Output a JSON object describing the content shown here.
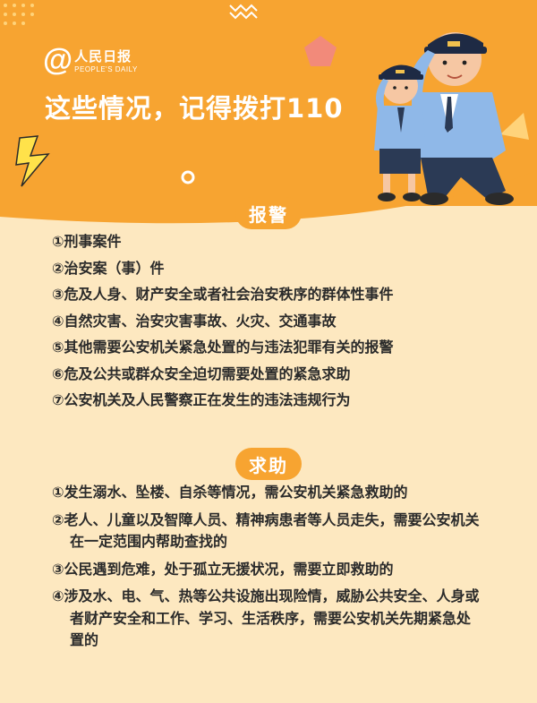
{
  "brand": {
    "name_cn": "人民日报",
    "name_en": "PEOPLE'S DAILY",
    "at_symbol": "@"
  },
  "headline": "这些情况，记得拨打110",
  "colors": {
    "accent_orange": "#f7a431",
    "background_cream": "#fde8c0",
    "text_dark": "#2a2a2a",
    "white": "#ffffff"
  },
  "sections": {
    "report": {
      "title": "报警",
      "items": [
        "①刑事案件",
        "②治安案（事）件",
        "③危及人身、财产安全或者社会治安秩序的群体性事件",
        "④自然灾害、治安灾害事故、火灾、交通事故",
        "⑤其他需要公安机关紧急处置的与违法犯罪有关的报警",
        "⑥危及公共或群众安全迫切需要处置的紧急求助",
        "⑦公安机关及人民警察正在发生的违法违规行为"
      ]
    },
    "help": {
      "title": "求助",
      "items": [
        "①发生溺水、坠楼、自杀等情况，需公安机关紧急救助的",
        "②老人、儿童以及智障人员、精神病患者等人员走失，需要公安机关在一定范围内帮助查找的",
        "③公民遇到危难，处于孤立无援状况，需要立即救助的",
        "④涉及水、电、气、热等公共设施出现险情，威胁公共安全、人身或者财产安全和工作、学习、生活秩序，需要公安机关先期紧急处置的"
      ]
    }
  },
  "illustration": {
    "icon": "saluting-police-officers-illustration"
  }
}
